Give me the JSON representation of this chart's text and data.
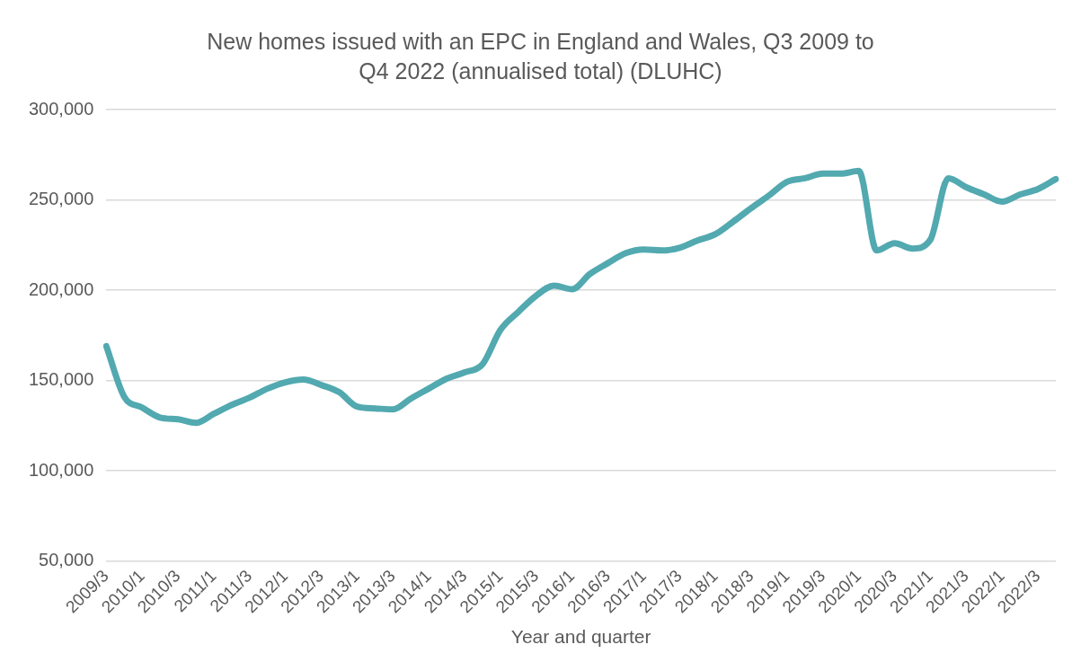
{
  "chart_data": {
    "type": "line",
    "title": "New homes issued with an EPC in England and Wales, Q3 2009 to Q4 2022 (annualised total) (DLUHC)",
    "xlabel": "Year and quarter",
    "categories": [
      "2009/3",
      null,
      "2010/1",
      null,
      "2010/3",
      null,
      "2011/1",
      null,
      "2011/3",
      null,
      "2012/1",
      null,
      "2012/3",
      null,
      "2013/1",
      null,
      "2013/3",
      null,
      "2014/1",
      null,
      "2014/3",
      null,
      "2015/1",
      null,
      "2015/3",
      null,
      "2016/1",
      null,
      "2016/3",
      null,
      "2017/1",
      null,
      "2017/3",
      null,
      "2018/1",
      null,
      "2018/3",
      null,
      "2019/1",
      null,
      "2019/3",
      null,
      "2020/1",
      null,
      "2020/3",
      null,
      "2021/1",
      null,
      "2021/3",
      null,
      "2022/1",
      null,
      "2022/3",
      null
    ],
    "series": [
      {
        "color": "#52a9b0",
        "values": [
          169000,
          141000,
          135000,
          129500,
          128500,
          126500,
          131500,
          136500,
          140500,
          145500,
          149000,
          150500,
          147500,
          143500,
          135500,
          134500,
          134000,
          140000,
          145500,
          151000,
          154500,
          159000,
          178000,
          188000,
          197000,
          202500,
          200500,
          209000,
          215000,
          220500,
          222500,
          222000,
          223500,
          227500,
          231000,
          238000,
          245500,
          252500,
          260000,
          262000,
          264500,
          264500,
          266000,
          222000,
          226000,
          223000,
          228000,
          262000,
          257000,
          253000,
          249000,
          253000,
          256000,
          261500
        ]
      }
    ],
    "ylim": [
      50000,
      300000
    ],
    "yticks": [
      {
        "value": 50000,
        "label": "50,000"
      },
      {
        "value": 100000,
        "label": "100,000"
      },
      {
        "value": 150000,
        "label": "150,000"
      },
      {
        "value": 200000,
        "label": "200,000"
      },
      {
        "value": 250000,
        "label": "250,000"
      },
      {
        "value": 300000,
        "label": "300,000"
      }
    ],
    "grid": "y",
    "legend": false,
    "marker": "none",
    "line_style": "solid"
  }
}
